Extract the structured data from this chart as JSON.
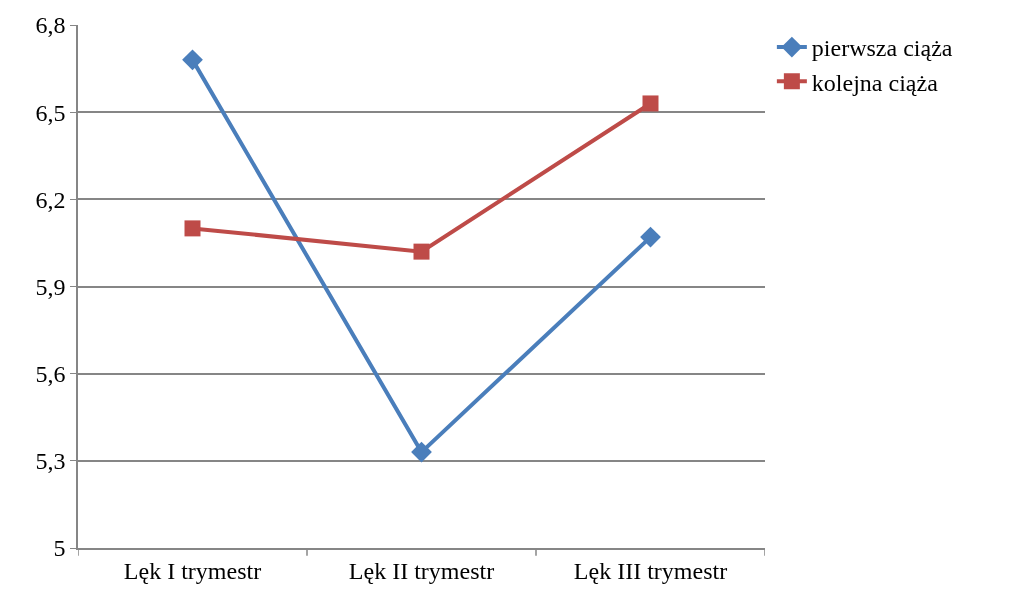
{
  "chart_data": {
    "type": "line",
    "categories": [
      "Lęk I trymestr",
      "Lęk II trymestr",
      "Lęk III trymestr"
    ],
    "series": [
      {
        "name": "pierwsza ciąża",
        "color": "#4a7ebb",
        "values": [
          6.68,
          5.33,
          6.07
        ],
        "marker": "diamond"
      },
      {
        "name": "kolejna ciąża",
        "color": "#be4b48",
        "values": [
          6.1,
          6.02,
          6.53
        ],
        "marker": "square"
      }
    ],
    "ylim": [
      5,
      6.8
    ],
    "yticks": [
      5,
      {
        "value": 5.3,
        "label": "5,3"
      },
      {
        "value": 5.6,
        "label": "5,6"
      },
      {
        "value": 5.9,
        "label": "5,9"
      },
      {
        "value": 6.2,
        "label": "6,2"
      },
      {
        "value": 6.5,
        "label": "6,5"
      },
      {
        "value": 6.8,
        "label": "6,8"
      }
    ],
    "grid": "y",
    "legend": "top right",
    "line_style": "solid"
  }
}
